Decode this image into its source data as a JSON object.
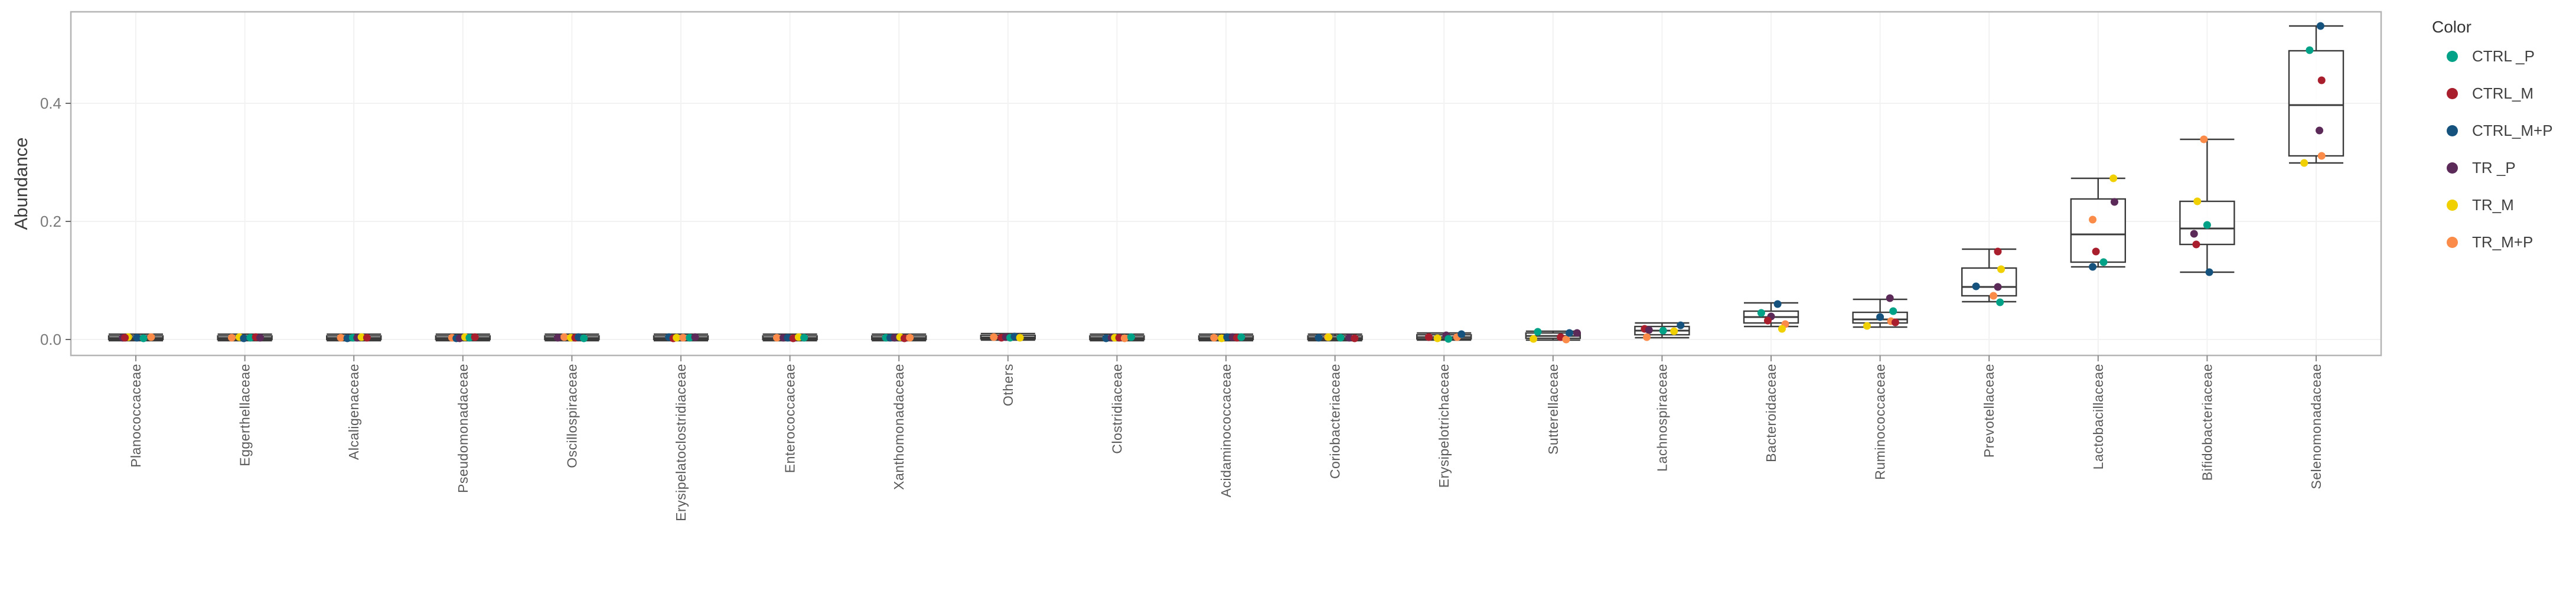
{
  "figure": {
    "background": "#ffffff",
    "panel_border_color": "#b4b4b4",
    "gridline_color": "#f2f2f2",
    "box_stroke_color": "#3a3a3a",
    "axis_text_color": "#7a7a7a",
    "x_label_color": "#595959",
    "axis_title_color": "#3d3d3d"
  },
  "chart_data": {
    "type": "boxplot",
    "title": "",
    "xlabel": "",
    "ylabel": "Abundance",
    "ylim": [
      -0.027,
      0.555
    ],
    "grid": true,
    "yticks": [
      {
        "value": 0.0,
        "label": "0.0"
      },
      {
        "value": 0.2,
        "label": "0.2"
      },
      {
        "value": 0.4,
        "label": "0.4"
      }
    ],
    "legend": {
      "title": "Color",
      "position": "right"
    },
    "groups": [
      {
        "label": "CTRL _P",
        "color": "#00A287"
      },
      {
        "label": "CTRL_M",
        "color": "#A81E2C"
      },
      {
        "label": "CTRL_M+P",
        "color": "#15537E"
      },
      {
        "label": "TR _P",
        "color": "#5B2A58"
      },
      {
        "label": "TR_M",
        "color": "#F0D000"
      },
      {
        "label": "TR_M+P",
        "color": "#FB8B48"
      }
    ],
    "categories": [
      {
        "label": "Planococcaceae",
        "box": {
          "lo": -0.002,
          "q1": 0.0,
          "med": 0.0025,
          "q3": 0.006,
          "hi": 0.009
        },
        "points": [
          {
            "g": 3,
            "v": 0.003,
            "j": -0.12
          },
          {
            "g": 4,
            "v": 0.004,
            "j": -0.07
          },
          {
            "g": 1,
            "v": 0.003,
            "j": -0.1
          },
          {
            "g": 2,
            "v": 0.003,
            "j": 0.01
          },
          {
            "g": 0,
            "v": 0.002,
            "j": 0.07
          },
          {
            "g": 5,
            "v": 0.004,
            "j": 0.14
          }
        ]
      },
      {
        "label": "Eggerthellaceae",
        "box": {
          "lo": -0.002,
          "q1": 0.0,
          "med": 0.0025,
          "q3": 0.006,
          "hi": 0.009
        },
        "points": [
          {
            "g": 5,
            "v": 0.003,
            "j": -0.12
          },
          {
            "g": 4,
            "v": 0.004,
            "j": -0.05
          },
          {
            "g": 2,
            "v": 0.002,
            "j": -0.01
          },
          {
            "g": 0,
            "v": 0.003,
            "j": 0.05
          },
          {
            "g": 1,
            "v": 0.004,
            "j": 0.1
          },
          {
            "g": 3,
            "v": 0.003,
            "j": 0.14
          }
        ]
      },
      {
        "label": "Alcaligenaceae",
        "box": {
          "lo": -0.002,
          "q1": 0.0,
          "med": 0.0025,
          "q3": 0.006,
          "hi": 0.009
        },
        "points": [
          {
            "g": 5,
            "v": 0.003,
            "j": -0.12
          },
          {
            "g": 2,
            "v": 0.002,
            "j": -0.06
          },
          {
            "g": 0,
            "v": 0.003,
            "j": -0.01
          },
          {
            "g": 3,
            "v": 0.003,
            "j": 0.03
          },
          {
            "g": 4,
            "v": 0.004,
            "j": 0.07
          },
          {
            "g": 1,
            "v": 0.003,
            "j": 0.12
          }
        ]
      },
      {
        "label": "Pseudomonadaceae",
        "box": {
          "lo": -0.002,
          "q1": 0.0,
          "med": 0.0025,
          "q3": 0.006,
          "hi": 0.009
        },
        "points": [
          {
            "g": 5,
            "v": 0.003,
            "j": -0.1
          },
          {
            "g": 2,
            "v": 0.002,
            "j": -0.06
          },
          {
            "g": 3,
            "v": 0.002,
            "j": -0.03
          },
          {
            "g": 4,
            "v": 0.004,
            "j": 0.02
          },
          {
            "g": 0,
            "v": 0.003,
            "j": 0.06
          },
          {
            "g": 1,
            "v": 0.004,
            "j": 0.11
          }
        ]
      },
      {
        "label": "Oscillospiraceae",
        "box": {
          "lo": -0.002,
          "q1": 0.0,
          "med": 0.0025,
          "q3": 0.006,
          "hi": 0.009
        },
        "points": [
          {
            "g": 3,
            "v": 0.003,
            "j": -0.13
          },
          {
            "g": 5,
            "v": 0.004,
            "j": -0.07
          },
          {
            "g": 4,
            "v": 0.003,
            "j": -0.01
          },
          {
            "g": 1,
            "v": 0.003,
            "j": 0.03
          },
          {
            "g": 2,
            "v": 0.004,
            "j": 0.06
          },
          {
            "g": 0,
            "v": 0.002,
            "j": 0.11
          }
        ]
      },
      {
        "label": "Erysipelatoclostridiaceae",
        "box": {
          "lo": -0.002,
          "q1": 0.0,
          "med": 0.0025,
          "q3": 0.006,
          "hi": 0.009
        },
        "points": [
          {
            "g": 2,
            "v": 0.004,
            "j": -0.11
          },
          {
            "g": 1,
            "v": 0.002,
            "j": -0.07
          },
          {
            "g": 4,
            "v": 0.003,
            "j": -0.04
          },
          {
            "g": 5,
            "v": 0.003,
            "j": 0.02
          },
          {
            "g": 0,
            "v": 0.003,
            "j": 0.08
          },
          {
            "g": 3,
            "v": 0.004,
            "j": 0.13
          }
        ]
      },
      {
        "label": "Enterococcaceae",
        "box": {
          "lo": -0.002,
          "q1": 0.0,
          "med": 0.0025,
          "q3": 0.006,
          "hi": 0.009
        },
        "points": [
          {
            "g": 5,
            "v": 0.003,
            "j": -0.12
          },
          {
            "g": 3,
            "v": 0.003,
            "j": -0.06
          },
          {
            "g": 2,
            "v": 0.003,
            "j": -0.02
          },
          {
            "g": 1,
            "v": 0.002,
            "j": 0.03
          },
          {
            "g": 4,
            "v": 0.004,
            "j": 0.08
          },
          {
            "g": 0,
            "v": 0.003,
            "j": 0.13
          }
        ]
      },
      {
        "label": "Xanthomonadaceae",
        "box": {
          "lo": -0.002,
          "q1": 0.0,
          "med": 0.0025,
          "q3": 0.006,
          "hi": 0.009
        },
        "points": [
          {
            "g": 0,
            "v": 0.003,
            "j": -0.12
          },
          {
            "g": 2,
            "v": 0.003,
            "j": -0.08
          },
          {
            "g": 3,
            "v": 0.003,
            "j": -0.04
          },
          {
            "g": 4,
            "v": 0.004,
            "j": 0.01
          },
          {
            "g": 1,
            "v": 0.002,
            "j": 0.05
          },
          {
            "g": 5,
            "v": 0.003,
            "j": 0.1
          }
        ]
      },
      {
        "label": "Others",
        "box": {
          "lo": -0.001,
          "q1": 0.001,
          "med": 0.0035,
          "q3": 0.007,
          "hi": 0.01
        },
        "points": [
          {
            "g": 5,
            "v": 0.004,
            "j": -0.13
          },
          {
            "g": 1,
            "v": 0.003,
            "j": -0.06
          },
          {
            "g": 3,
            "v": 0.004,
            "j": -0.02
          },
          {
            "g": 0,
            "v": 0.003,
            "j": 0.02
          },
          {
            "g": 2,
            "v": 0.005,
            "j": 0.06
          },
          {
            "g": 4,
            "v": 0.003,
            "j": 0.11
          }
        ]
      },
      {
        "label": "Clostridiaceae",
        "box": {
          "lo": -0.002,
          "q1": 0.0,
          "med": 0.0025,
          "q3": 0.006,
          "hi": 0.009
        },
        "points": [
          {
            "g": 2,
            "v": 0.002,
            "j": -0.1
          },
          {
            "g": 3,
            "v": 0.003,
            "j": -0.05
          },
          {
            "g": 4,
            "v": 0.003,
            "j": -0.02
          },
          {
            "g": 1,
            "v": 0.003,
            "j": 0.02
          },
          {
            "g": 5,
            "v": 0.002,
            "j": 0.07
          },
          {
            "g": 0,
            "v": 0.004,
            "j": 0.13
          }
        ]
      },
      {
        "label": "Acidaminococcaceae",
        "box": {
          "lo": -0.002,
          "q1": 0.0,
          "med": 0.0025,
          "q3": 0.006,
          "hi": 0.009
        },
        "points": [
          {
            "g": 5,
            "v": 0.003,
            "j": -0.11
          },
          {
            "g": 4,
            "v": 0.002,
            "j": -0.04
          },
          {
            "g": 2,
            "v": 0.004,
            "j": 0.01
          },
          {
            "g": 3,
            "v": 0.004,
            "j": 0.06
          },
          {
            "g": 1,
            "v": 0.003,
            "j": 0.1
          },
          {
            "g": 0,
            "v": 0.004,
            "j": 0.14
          }
        ]
      },
      {
        "label": "Coriobacteriaceae",
        "box": {
          "lo": -0.002,
          "q1": 0.0,
          "med": 0.0025,
          "q3": 0.006,
          "hi": 0.009
        },
        "points": [
          {
            "g": 2,
            "v": 0.003,
            "j": -0.15
          },
          {
            "g": 5,
            "v": 0.004,
            "j": -0.065
          },
          {
            "g": 4,
            "v": 0.004,
            "j": -0.06
          },
          {
            "g": 0,
            "v": 0.003,
            "j": 0.05
          },
          {
            "g": 3,
            "v": 0.003,
            "j": 0.13
          },
          {
            "g": 1,
            "v": 0.002,
            "j": 0.18
          }
        ]
      },
      {
        "label": "Erysipelotrichaceae",
        "box": {
          "lo": -0.001,
          "q1": 0.001,
          "med": 0.004,
          "q3": 0.008,
          "hi": 0.011
        },
        "points": [
          {
            "g": 1,
            "v": 0.004,
            "j": -0.14
          },
          {
            "g": 4,
            "v": 0.002,
            "j": -0.06
          },
          {
            "g": 3,
            "v": 0.007,
            "j": 0.02
          },
          {
            "g": 0,
            "v": 0.001,
            "j": 0.04
          },
          {
            "g": 5,
            "v": 0.004,
            "j": 0.12
          },
          {
            "g": 2,
            "v": 0.009,
            "j": 0.16
          }
        ]
      },
      {
        "label": "Sutterellaceae",
        "box": {
          "lo": -0.001,
          "q1": 0.002,
          "med": 0.006,
          "q3": 0.011,
          "hi": 0.014
        },
        "points": [
          {
            "g": 0,
            "v": 0.013,
            "j": -0.14
          },
          {
            "g": 4,
            "v": 0.001,
            "j": -0.18
          },
          {
            "g": 1,
            "v": 0.004,
            "j": 0.07
          },
          {
            "g": 5,
            "v": 0.0,
            "j": 0.12
          },
          {
            "g": 2,
            "v": 0.011,
            "j": 0.15
          },
          {
            "g": 3,
            "v": 0.011,
            "j": 0.22
          }
        ]
      },
      {
        "label": "Lachnospiraceae",
        "box": {
          "lo": 0.003,
          "q1": 0.008,
          "med": 0.015,
          "q3": 0.022,
          "hi": 0.028
        },
        "points": [
          {
            "g": 1,
            "v": 0.018,
            "j": -0.16
          },
          {
            "g": 3,
            "v": 0.016,
            "j": -0.12
          },
          {
            "g": 5,
            "v": 0.004,
            "j": -0.14
          },
          {
            "g": 0,
            "v": 0.015,
            "j": 0.01
          },
          {
            "g": 4,
            "v": 0.014,
            "j": 0.11
          },
          {
            "g": 2,
            "v": 0.024,
            "j": 0.17
          }
        ]
      },
      {
        "label": "Bacteroidaceae",
        "box": {
          "lo": 0.022,
          "q1": 0.028,
          "med": 0.038,
          "q3": 0.048,
          "hi": 0.062
        },
        "points": [
          {
            "g": 2,
            "v": 0.06,
            "j": 0.06
          },
          {
            "g": 0,
            "v": 0.045,
            "j": -0.09
          },
          {
            "g": 3,
            "v": 0.039,
            "j": 0.0
          },
          {
            "g": 1,
            "v": 0.032,
            "j": -0.03
          },
          {
            "g": 5,
            "v": 0.026,
            "j": 0.13
          },
          {
            "g": 4,
            "v": 0.018,
            "j": 0.1
          }
        ]
      },
      {
        "label": "Ruminococcaceae",
        "box": {
          "lo": 0.021,
          "q1": 0.028,
          "med": 0.034,
          "q3": 0.046,
          "hi": 0.068
        },
        "points": [
          {
            "g": 3,
            "v": 0.07,
            "j": 0.09
          },
          {
            "g": 0,
            "v": 0.048,
            "j": 0.12
          },
          {
            "g": 2,
            "v": 0.038,
            "j": 0.0
          },
          {
            "g": 5,
            "v": 0.031,
            "j": 0.1
          },
          {
            "g": 1,
            "v": 0.029,
            "j": 0.14
          },
          {
            "g": 4,
            "v": 0.023,
            "j": -0.12
          }
        ]
      },
      {
        "label": "Prevotellaceae",
        "box": {
          "lo": 0.064,
          "q1": 0.074,
          "med": 0.089,
          "q3": 0.121,
          "hi": 0.153
        },
        "points": [
          {
            "g": 1,
            "v": 0.149,
            "j": 0.08
          },
          {
            "g": 4,
            "v": 0.119,
            "j": 0.11
          },
          {
            "g": 2,
            "v": 0.09,
            "j": -0.12
          },
          {
            "g": 3,
            "v": 0.089,
            "j": 0.08
          },
          {
            "g": 5,
            "v": 0.074,
            "j": 0.04
          },
          {
            "g": 0,
            "v": 0.063,
            "j": 0.1
          }
        ]
      },
      {
        "label": "Lactobacillaceae",
        "box": {
          "lo": 0.123,
          "q1": 0.131,
          "med": 0.178,
          "q3": 0.238,
          "hi": 0.273
        },
        "points": [
          {
            "g": 4,
            "v": 0.273,
            "j": 0.14
          },
          {
            "g": 3,
            "v": 0.233,
            "j": 0.15
          },
          {
            "g": 5,
            "v": 0.203,
            "j": -0.05
          },
          {
            "g": 1,
            "v": 0.149,
            "j": -0.02
          },
          {
            "g": 0,
            "v": 0.131,
            "j": 0.05
          },
          {
            "g": 2,
            "v": 0.123,
            "j": -0.05
          }
        ]
      },
      {
        "label": "Bifidobacteriaceae",
        "box": {
          "lo": 0.114,
          "q1": 0.161,
          "med": 0.188,
          "q3": 0.234,
          "hi": 0.339
        },
        "points": [
          {
            "g": 5,
            "v": 0.339,
            "j": -0.03
          },
          {
            "g": 4,
            "v": 0.234,
            "j": -0.09
          },
          {
            "g": 0,
            "v": 0.194,
            "j": 0.0
          },
          {
            "g": 3,
            "v": 0.179,
            "j": -0.12
          },
          {
            "g": 1,
            "v": 0.161,
            "j": -0.1
          },
          {
            "g": 2,
            "v": 0.114,
            "j": 0.02
          }
        ]
      },
      {
        "label": "Selenomonadaceae",
        "box": {
          "lo": 0.299,
          "q1": 0.311,
          "med": 0.397,
          "q3": 0.489,
          "hi": 0.531
        },
        "points": [
          {
            "g": 2,
            "v": 0.531,
            "j": 0.04
          },
          {
            "g": 0,
            "v": 0.49,
            "j": -0.06
          },
          {
            "g": 1,
            "v": 0.439,
            "j": 0.05
          },
          {
            "g": 3,
            "v": 0.354,
            "j": 0.03
          },
          {
            "g": 5,
            "v": 0.311,
            "j": 0.05
          },
          {
            "g": 4,
            "v": 0.299,
            "j": -0.11
          }
        ]
      }
    ]
  }
}
